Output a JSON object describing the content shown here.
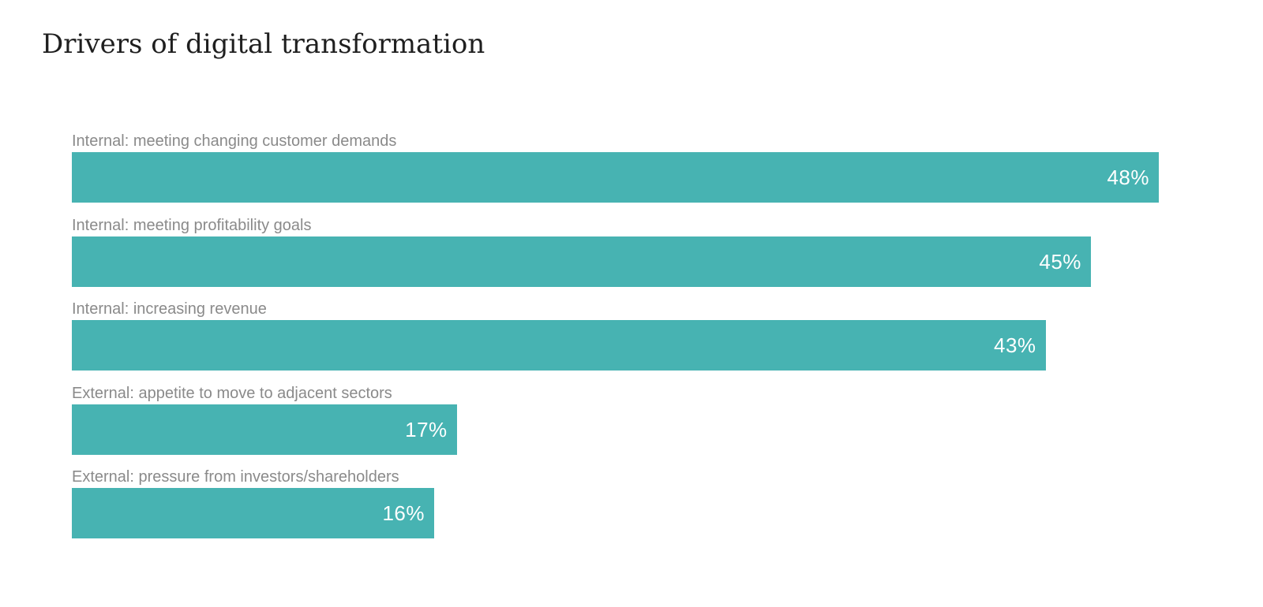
{
  "chart_data": {
    "type": "bar",
    "orientation": "horizontal",
    "title": "Drivers of digital transformation",
    "categories": [
      "Internal: meeting changing customer demands",
      "Internal: meeting profitability goals",
      "Internal: increasing revenue",
      "External: appetite to move to adjacent sectors",
      "External: pressure from investors/shareholders"
    ],
    "values": [
      48,
      45,
      43,
      17,
      16
    ],
    "value_labels": [
      "48%",
      "45%",
      "43%",
      "17%",
      "16%"
    ],
    "unit": "%",
    "xlim": [
      0,
      48
    ],
    "grid": false,
    "legend": "none",
    "bar_color": "#47b3b2"
  }
}
